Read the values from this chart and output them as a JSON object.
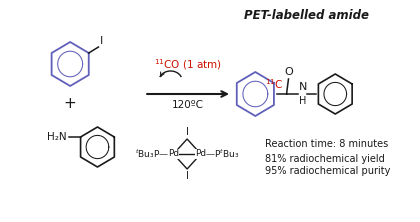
{
  "title": "PET-labelled amide",
  "reaction_time": "Reaction time: 8 minutes",
  "yield_line": "81% radiochemical yield",
  "purity_line": "95% radiochemical purity",
  "temp_label": "120ºC",
  "bg_color": "#ffffff",
  "blue": "#6060bb",
  "black": "#1a1a1a",
  "red": "#cc1100",
  "gray": "#444444"
}
